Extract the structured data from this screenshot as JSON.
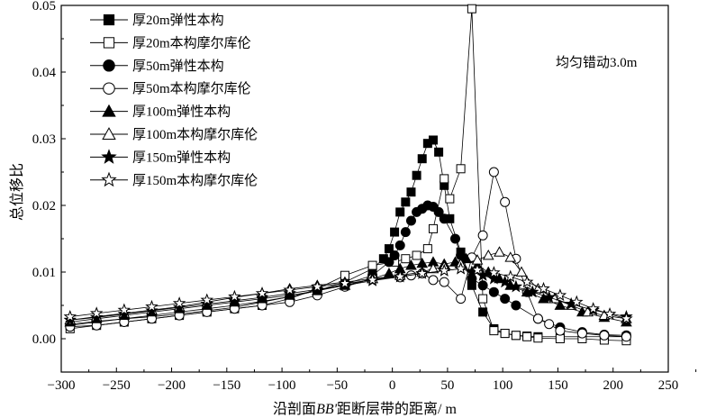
{
  "chart_data": {
    "type": "line",
    "title": "",
    "annotation": "均匀错动3.0m",
    "xlabel_parts": [
      "沿剖面",
      "BB'",
      "距断层带的距离/ m"
    ],
    "ylabel": "总位移比",
    "xlim": [
      -300,
      250
    ],
    "ylim": [
      -0.005,
      0.05
    ],
    "xticks": [
      "−300",
      "−250",
      "−200",
      "−150",
      "−100",
      "−50",
      "0",
      "50",
      "100",
      "150",
      "200",
      "250"
    ],
    "yticks": [
      "0.00",
      "0.01",
      "0.02",
      "0.03",
      "0.04",
      "0.05"
    ],
    "grid": false,
    "legend_position": "top-left",
    "series": [
      {
        "name": "厚20m弹性本构",
        "marker": "square",
        "fill": "filled",
        "x": [
          -292,
          -268,
          -243,
          -218,
          -193,
          -168,
          -143,
          -118,
          -93,
          -68,
          -43,
          -18,
          -8,
          -3,
          2,
          7,
          12,
          17,
          22,
          27,
          32,
          37,
          42,
          47,
          52,
          62,
          72,
          82,
          92,
          102,
          112,
          122,
          132,
          152,
          172,
          192,
          212
        ],
        "y": [
          0.002,
          0.0025,
          0.003,
          0.0033,
          0.0037,
          0.0042,
          0.0047,
          0.0055,
          0.0063,
          0.0072,
          0.0085,
          0.0105,
          0.012,
          0.0135,
          0.016,
          0.019,
          0.0205,
          0.022,
          0.0245,
          0.027,
          0.0293,
          0.0298,
          0.028,
          0.023,
          0.018,
          0.013,
          0.008,
          0.004,
          0.0015,
          0.0008,
          0.0005,
          0.0004,
          0.0003,
          0.0003,
          0.0003,
          0.0003,
          0.0003
        ]
      },
      {
        "name": "厚20m本构摩尔库伦",
        "marker": "square",
        "fill": "open",
        "x": [
          -292,
          -268,
          -243,
          -218,
          -193,
          -168,
          -143,
          -118,
          -93,
          -68,
          -43,
          -18,
          2,
          12,
          22,
          32,
          37,
          47,
          52,
          62,
          72,
          82,
          92,
          102,
          112,
          122,
          132,
          152,
          172,
          192,
          212
        ],
        "y": [
          0.0015,
          0.002,
          0.0025,
          0.003,
          0.0035,
          0.004,
          0.0045,
          0.005,
          0.006,
          0.0075,
          0.0095,
          0.011,
          0.0115,
          0.012,
          0.0125,
          0.0135,
          0.0165,
          0.024,
          0.021,
          0.0255,
          0.0495,
          0.006,
          0.0012,
          0.0008,
          0.0005,
          0.0003,
          0.0001,
          0.0,
          0.0,
          -0.0002,
          -0.0003
        ]
      },
      {
        "name": "厚50m弹性本构",
        "marker": "circle",
        "fill": "filled",
        "x": [
          -292,
          -268,
          -243,
          -218,
          -193,
          -168,
          -143,
          -118,
          -93,
          -68,
          -43,
          -18,
          -3,
          2,
          7,
          12,
          17,
          22,
          27,
          32,
          37,
          42,
          47,
          57,
          62,
          72,
          82,
          92,
          102,
          112,
          132,
          152,
          172,
          192,
          212
        ],
        "y": [
          0.0022,
          0.0026,
          0.003,
          0.0035,
          0.004,
          0.0045,
          0.005,
          0.0056,
          0.0063,
          0.0072,
          0.0082,
          0.0095,
          0.0115,
          0.0125,
          0.014,
          0.016,
          0.0177,
          0.019,
          0.0195,
          0.02,
          0.0198,
          0.019,
          0.018,
          0.015,
          0.0125,
          0.009,
          0.008,
          0.007,
          0.006,
          0.005,
          0.003,
          0.0017,
          0.001,
          0.0006,
          0.0005
        ]
      },
      {
        "name": "厚50m本构摩尔库伦",
        "marker": "circle",
        "fill": "open",
        "x": [
          -292,
          -268,
          -243,
          -218,
          -193,
          -168,
          -143,
          -118,
          -93,
          -68,
          -43,
          -18,
          7,
          17,
          27,
          37,
          47,
          62,
          72,
          82,
          92,
          102,
          112,
          122,
          132,
          142,
          152,
          172,
          192,
          212
        ],
        "y": [
          0.0018,
          0.002,
          0.0025,
          0.003,
          0.0035,
          0.004,
          0.0045,
          0.005,
          0.0055,
          0.0065,
          0.0078,
          0.009,
          0.0092,
          0.0095,
          0.0098,
          0.0088,
          0.0085,
          0.006,
          0.0122,
          0.0155,
          0.025,
          0.0205,
          0.012,
          0.007,
          0.003,
          0.0022,
          0.0012,
          0.0008,
          0.0005,
          0.0003
        ]
      },
      {
        "name": "厚100m弹性本构",
        "marker": "triangle",
        "fill": "filled",
        "x": [
          -292,
          -268,
          -243,
          -218,
          -193,
          -168,
          -143,
          -118,
          -93,
          -68,
          -43,
          -18,
          -3,
          7,
          17,
          27,
          37,
          47,
          57,
          67,
          77,
          87,
          97,
          107,
          122,
          137,
          152,
          172,
          192,
          212
        ],
        "y": [
          0.0025,
          0.003,
          0.0035,
          0.004,
          0.0045,
          0.005,
          0.0055,
          0.006,
          0.0065,
          0.0072,
          0.008,
          0.009,
          0.0098,
          0.0105,
          0.011,
          0.0113,
          0.0115,
          0.0112,
          0.0115,
          0.012,
          0.011,
          0.01,
          0.009,
          0.008,
          0.007,
          0.006,
          0.005,
          0.004,
          0.0032,
          0.0025
        ]
      },
      {
        "name": "厚100m本构摩尔库伦",
        "marker": "triangle",
        "fill": "open",
        "x": [
          -292,
          -268,
          -243,
          -218,
          -193,
          -168,
          -143,
          -118,
          -93,
          -68,
          -43,
          -18,
          7,
          27,
          37,
          47,
          62,
          77,
          87,
          97,
          107,
          117,
          132,
          147,
          162,
          177,
          192,
          212
        ],
        "y": [
          0.0028,
          0.0033,
          0.0038,
          0.0043,
          0.0048,
          0.0055,
          0.0062,
          0.0068,
          0.0075,
          0.008,
          0.0085,
          0.009,
          0.0095,
          0.01,
          0.0105,
          0.0108,
          0.0112,
          0.0118,
          0.0125,
          0.013,
          0.0122,
          0.01,
          0.0075,
          0.006,
          0.005,
          0.004,
          0.0035,
          0.003
        ]
      },
      {
        "name": "厚150m弹性本构",
        "marker": "star",
        "fill": "filled",
        "x": [
          -292,
          -268,
          -243,
          -218,
          -193,
          -168,
          -143,
          -118,
          -93,
          -68,
          -43,
          -18,
          7,
          27,
          47,
          62,
          72,
          82,
          92,
          102,
          112,
          127,
          142,
          162,
          182,
          212
        ],
        "y": [
          0.0028,
          0.0032,
          0.0037,
          0.0042,
          0.0047,
          0.0052,
          0.0057,
          0.0062,
          0.0068,
          0.0074,
          0.008,
          0.0087,
          0.0093,
          0.0098,
          0.0102,
          0.0105,
          0.01,
          0.0095,
          0.009,
          0.0085,
          0.0078,
          0.007,
          0.0062,
          0.0052,
          0.0043,
          0.0033
        ]
      },
      {
        "name": "厚150m本构摩尔库伦",
        "marker": "star",
        "fill": "open",
        "x": [
          -292,
          -268,
          -243,
          -218,
          -193,
          -168,
          -143,
          -118,
          -93,
          -68,
          -43,
          -18,
          7,
          27,
          47,
          62,
          77,
          92,
          107,
          122,
          137,
          152,
          167,
          182,
          197,
          212
        ],
        "y": [
          0.0033,
          0.0038,
          0.0043,
          0.0048,
          0.0053,
          0.0058,
          0.0063,
          0.0068,
          0.0073,
          0.0078,
          0.0083,
          0.0088,
          0.0093,
          0.0098,
          0.0102,
          0.0105,
          0.0103,
          0.0099,
          0.0093,
          0.0085,
          0.0075,
          0.0065,
          0.0055,
          0.0045,
          0.0037,
          0.003
        ]
      }
    ]
  }
}
